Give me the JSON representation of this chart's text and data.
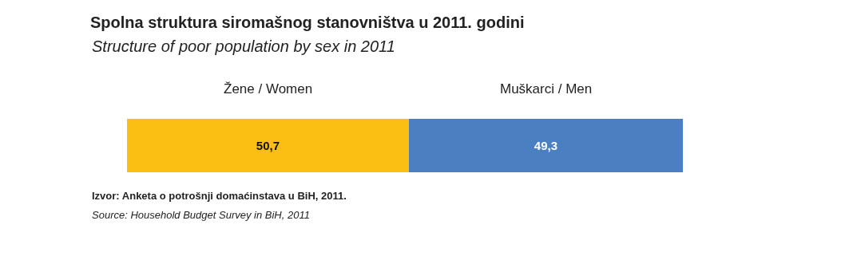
{
  "chart_data": {
    "type": "bar",
    "orientation": "horizontal",
    "stacked": true,
    "title": "Spolna struktura siromašnog stanovništva u 2011. godini",
    "subtitle": "Structure of poor population by sex in 2011",
    "categories": [
      null
    ],
    "series": [
      {
        "name": "Žene / Women",
        "color": "#fbbf14",
        "values": [
          50.7
        ],
        "value_labels": [
          "50,7"
        ]
      },
      {
        "name": "Muškarci / Men",
        "color": "#4a7fc1",
        "values": [
          49.3
        ],
        "value_labels": [
          "49,3"
        ]
      }
    ],
    "legend": false,
    "tick_labels": false,
    "annotations": [
      "Izvor: Anketa o potrošnji domaćinstava u BiH, 2011.",
      "Source: Household Budget Survey in BiH, 2011"
    ]
  }
}
